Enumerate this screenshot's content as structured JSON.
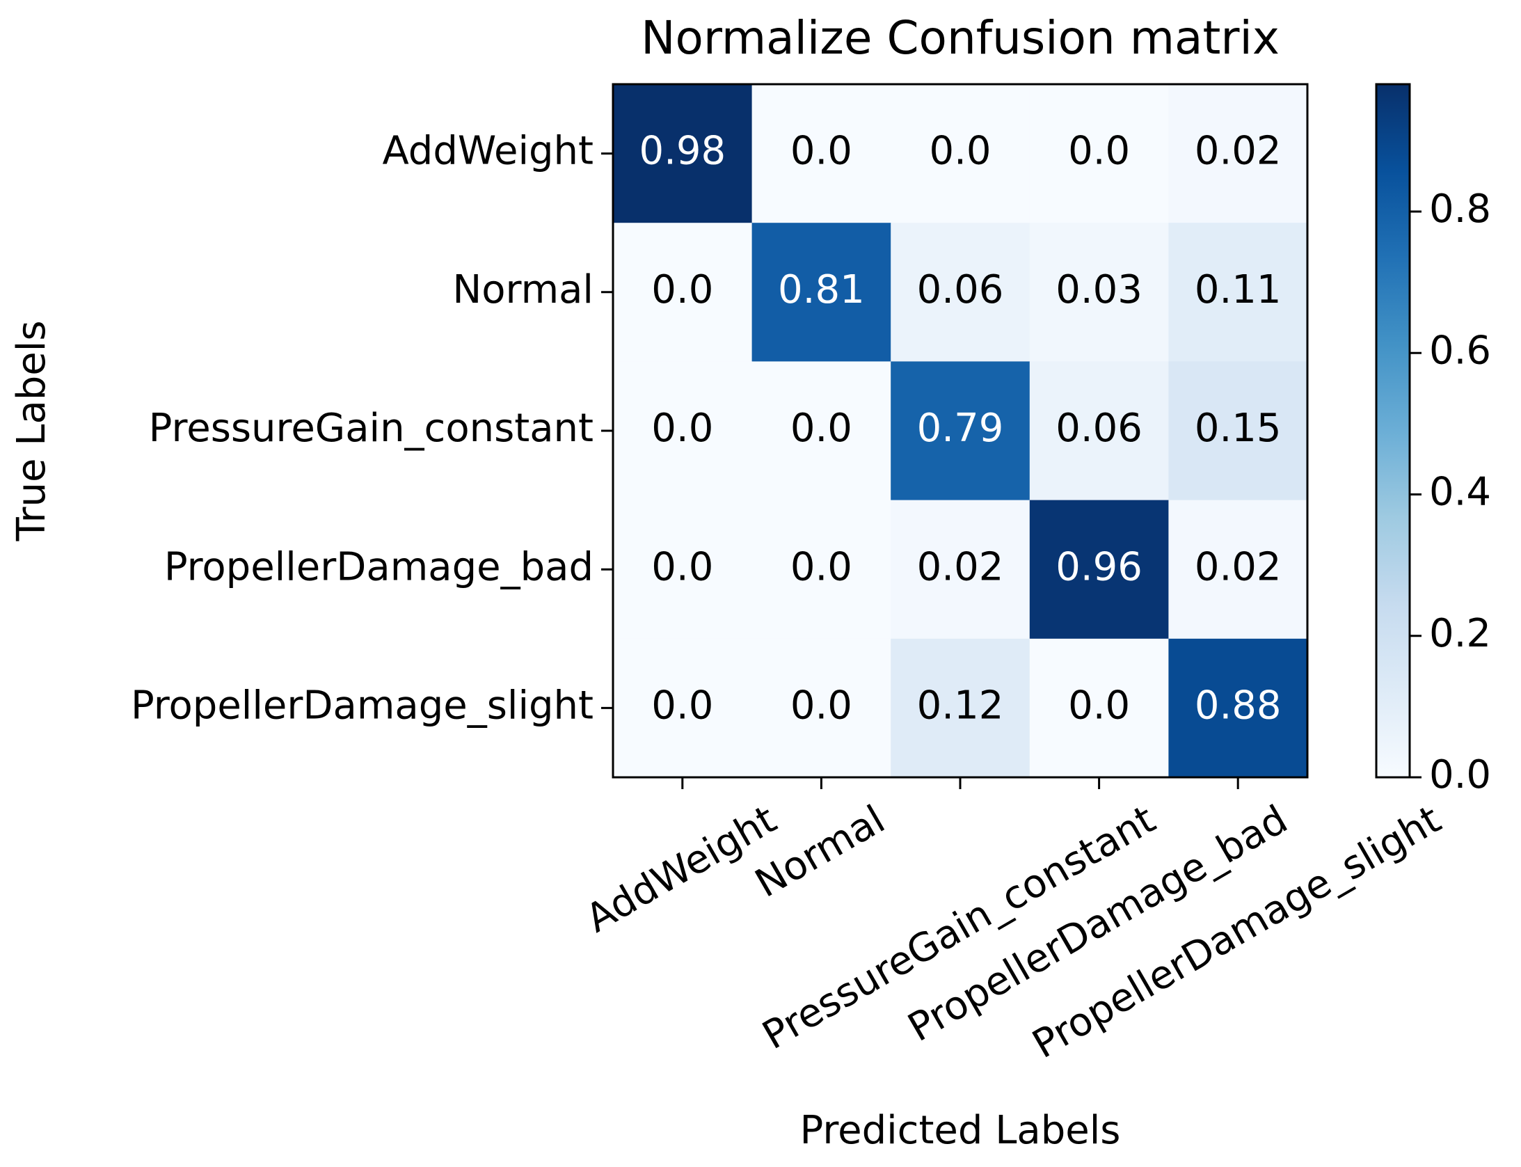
{
  "chart_data": {
    "type": "heatmap",
    "title": "Normalize Confusion matrix",
    "xlabel": "Predicted Labels",
    "ylabel": "True Labels",
    "x_categories": [
      "AddWeight",
      "Normal",
      "PressureGain_constant",
      "PropellerDamage_bad",
      "PropellerDamage_slight"
    ],
    "y_categories": [
      "AddWeight",
      "Normal",
      "PressureGain_constant",
      "PropellerDamage_bad",
      "PropellerDamage_slight"
    ],
    "values": [
      [
        0.98,
        0,
        0,
        0,
        0.02
      ],
      [
        0,
        0.81,
        0.06,
        0.03,
        0.11
      ],
      [
        0,
        0,
        0.79,
        0.06,
        0.15
      ],
      [
        0,
        0,
        0.02,
        0.96,
        0.02
      ],
      [
        0,
        0,
        0.12,
        0,
        0.88
      ]
    ],
    "value_labels": [
      [
        "0.98",
        "0.0",
        "0.0",
        "0.0",
        "0.02"
      ],
      [
        "0.0",
        "0.81",
        "0.06",
        "0.03",
        "0.11"
      ],
      [
        "0.0",
        "0.0",
        "0.79",
        "0.06",
        "0.15"
      ],
      [
        "0.0",
        "0.0",
        "0.02",
        "0.96",
        "0.02"
      ],
      [
        "0.0",
        "0.0",
        "0.12",
        "0.0",
        "0.88"
      ]
    ],
    "colormap": "Blues",
    "colorbar_lim": [
      0,
      0.98
    ],
    "colorbar_ticks": [
      {
        "value": 0,
        "label": "0.0"
      },
      {
        "value": 0.2,
        "label": "0.2"
      },
      {
        "value": 0.4,
        "label": "0.4"
      },
      {
        "value": 0.6,
        "label": "0.6"
      },
      {
        "value": 0.8,
        "label": "0.8"
      }
    ]
  }
}
